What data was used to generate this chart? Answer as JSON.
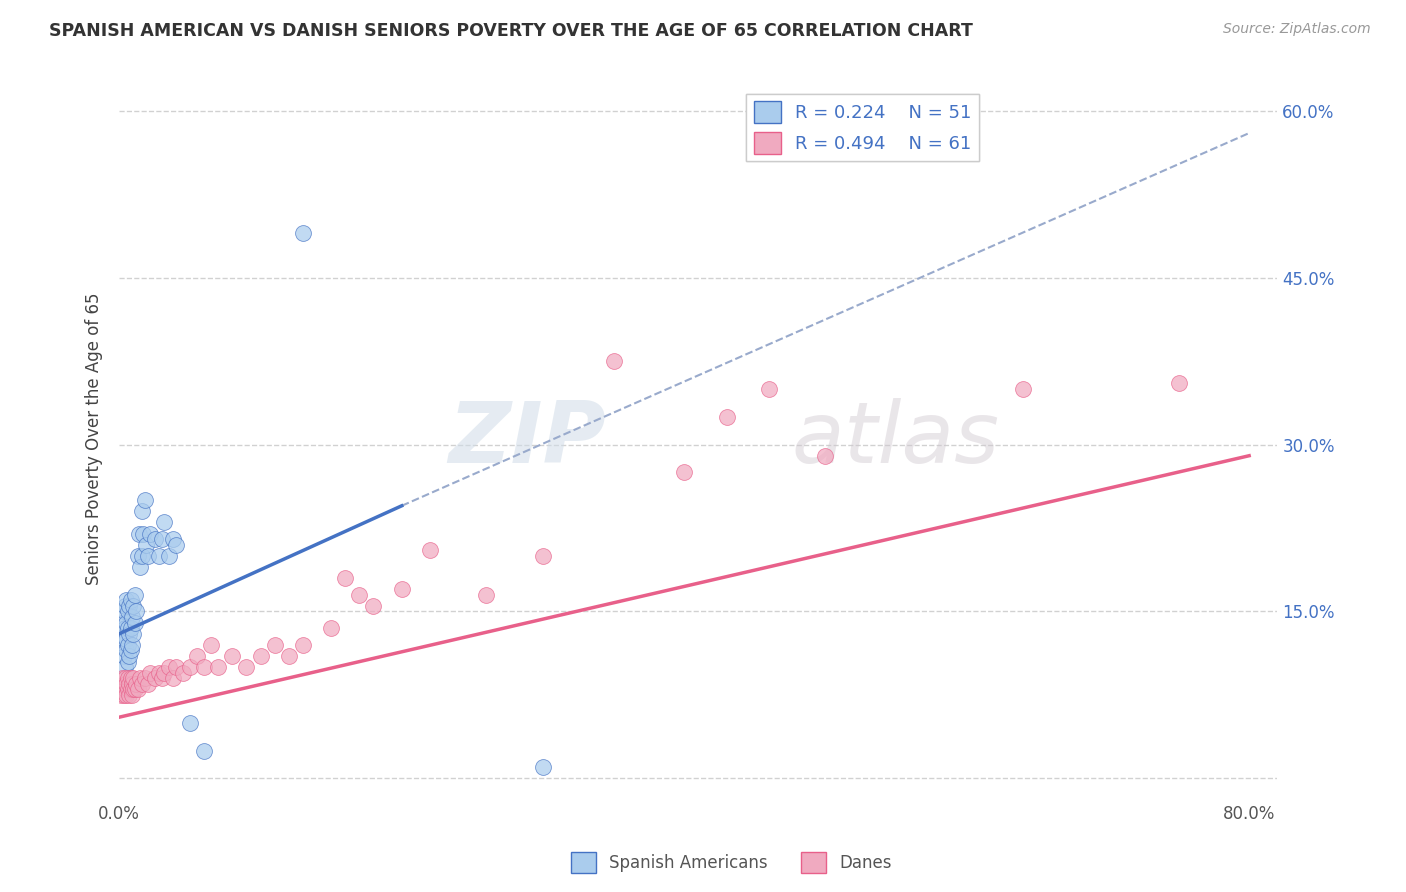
{
  "title": "SPANISH AMERICAN VS DANISH SENIORS POVERTY OVER THE AGE OF 65 CORRELATION CHART",
  "source": "Source: ZipAtlas.com",
  "ylabel": "Seniors Poverty Over the Age of 65",
  "xlim": [
    0.0,
    0.82
  ],
  "ylim": [
    -0.02,
    0.63
  ],
  "ytick_positions": [
    0.0,
    0.15,
    0.3,
    0.45,
    0.6
  ],
  "xtick_positions": [
    0.0,
    0.1,
    0.2,
    0.3,
    0.4,
    0.5,
    0.6,
    0.7,
    0.8
  ],
  "background_color": "#ffffff",
  "grid_color": "#cccccc",
  "watermark_zip": "ZIP",
  "watermark_atlas": "atlas",
  "legend_R1": "R = 0.224",
  "legend_N1": "N = 51",
  "legend_R2": "R = 0.494",
  "legend_N2": "N = 61",
  "color_spanish": "#aacced",
  "color_danish": "#f0aac0",
  "line_color_spanish": "#4472c4",
  "line_color_danish": "#e8608a",
  "line_color_dashed": "#99aacc",
  "label_color": "#4472c4",
  "spanish_x": [
    0.001,
    0.002,
    0.002,
    0.003,
    0.003,
    0.003,
    0.004,
    0.004,
    0.004,
    0.005,
    0.005,
    0.005,
    0.005,
    0.006,
    0.006,
    0.006,
    0.006,
    0.007,
    0.007,
    0.007,
    0.008,
    0.008,
    0.008,
    0.009,
    0.009,
    0.01,
    0.01,
    0.011,
    0.011,
    0.012,
    0.013,
    0.014,
    0.015,
    0.016,
    0.016,
    0.017,
    0.018,
    0.019,
    0.02,
    0.022,
    0.025,
    0.028,
    0.03,
    0.032,
    0.035,
    0.038,
    0.04,
    0.05,
    0.06,
    0.13,
    0.3
  ],
  "spanish_y": [
    0.13,
    0.12,
    0.14,
    0.11,
    0.125,
    0.15,
    0.1,
    0.135,
    0.155,
    0.115,
    0.125,
    0.14,
    0.16,
    0.105,
    0.12,
    0.135,
    0.15,
    0.11,
    0.13,
    0.155,
    0.115,
    0.135,
    0.16,
    0.12,
    0.145,
    0.13,
    0.155,
    0.14,
    0.165,
    0.15,
    0.2,
    0.22,
    0.19,
    0.2,
    0.24,
    0.22,
    0.25,
    0.21,
    0.2,
    0.22,
    0.215,
    0.2,
    0.215,
    0.23,
    0.2,
    0.215,
    0.21,
    0.05,
    0.025,
    0.49,
    0.01
  ],
  "danish_x": [
    0.001,
    0.002,
    0.002,
    0.003,
    0.003,
    0.004,
    0.004,
    0.005,
    0.005,
    0.006,
    0.006,
    0.007,
    0.007,
    0.008,
    0.008,
    0.009,
    0.009,
    0.01,
    0.01,
    0.011,
    0.012,
    0.013,
    0.015,
    0.016,
    0.018,
    0.02,
    0.022,
    0.025,
    0.028,
    0.03,
    0.032,
    0.035,
    0.038,
    0.04,
    0.045,
    0.05,
    0.055,
    0.06,
    0.065,
    0.07,
    0.08,
    0.09,
    0.1,
    0.11,
    0.12,
    0.13,
    0.15,
    0.16,
    0.17,
    0.18,
    0.2,
    0.22,
    0.26,
    0.3,
    0.35,
    0.4,
    0.43,
    0.46,
    0.5,
    0.64,
    0.75
  ],
  "danish_y": [
    0.075,
    0.08,
    0.09,
    0.075,
    0.085,
    0.08,
    0.09,
    0.075,
    0.085,
    0.08,
    0.09,
    0.075,
    0.085,
    0.08,
    0.09,
    0.075,
    0.085,
    0.08,
    0.09,
    0.08,
    0.085,
    0.08,
    0.09,
    0.085,
    0.09,
    0.085,
    0.095,
    0.09,
    0.095,
    0.09,
    0.095,
    0.1,
    0.09,
    0.1,
    0.095,
    0.1,
    0.11,
    0.1,
    0.12,
    0.1,
    0.11,
    0.1,
    0.11,
    0.12,
    0.11,
    0.12,
    0.135,
    0.18,
    0.165,
    0.155,
    0.17,
    0.205,
    0.165,
    0.2,
    0.375,
    0.275,
    0.325,
    0.35,
    0.29,
    0.35,
    0.355
  ],
  "sp_line_x_start": 0.0,
  "sp_line_x_end": 0.2,
  "sp_line_y_start": 0.13,
  "sp_line_y_end": 0.245,
  "dash_line_x_start": 0.2,
  "dash_line_x_end": 0.8,
  "dash_line_y_start": 0.245,
  "dash_line_y_end": 0.58,
  "da_line_x_start": 0.0,
  "da_line_x_end": 0.8,
  "da_line_y_start": 0.055,
  "da_line_y_end": 0.29
}
